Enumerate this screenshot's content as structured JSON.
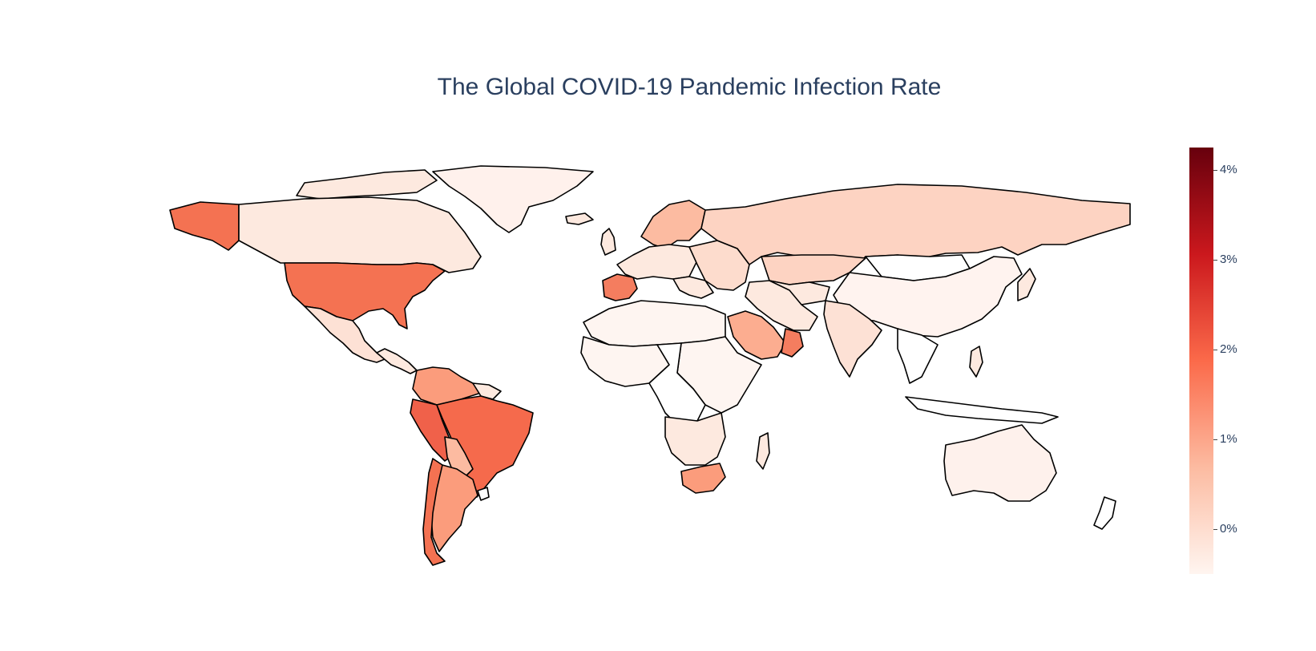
{
  "title": "The Global COVID-19 Pandemic Infection Rate",
  "colorbar": {
    "ticks": [
      "4%",
      "3%",
      "2%",
      "1%",
      "0%"
    ],
    "colorscale": "Reds",
    "colors": [
      "#fff5f0",
      "#fcbba1",
      "#fb6a4a",
      "#cb181d",
      "#67000d"
    ]
  },
  "map_data": {
    "projection": "equirectangular",
    "border_color": "#000000",
    "metric": "infection rate (%)",
    "highlighted_regions": [
      {
        "region": "United States",
        "approx_rate": 2.0
      },
      {
        "region": "Brazil",
        "approx_rate": 2.0
      },
      {
        "region": "Peru",
        "approx_rate": 2.0
      },
      {
        "region": "Chile",
        "approx_rate": 1.9
      },
      {
        "region": "Argentina",
        "approx_rate": 1.3
      },
      {
        "region": "Colombia",
        "approx_rate": 1.3
      },
      {
        "region": "Spain",
        "approx_rate": 1.5
      },
      {
        "region": "South Africa",
        "approx_rate": 1.2
      },
      {
        "region": "Oman",
        "approx_rate": 1.6
      },
      {
        "region": "Saudi Arabia",
        "approx_rate": 0.9
      },
      {
        "region": "Sweden",
        "approx_rate": 0.9
      },
      {
        "region": "Russia",
        "approx_rate": 0.6
      },
      {
        "region": "Kazakhstan",
        "approx_rate": 0.6
      },
      {
        "region": "Canada",
        "approx_rate": 0.3
      },
      {
        "region": "Mexico",
        "approx_rate": 0.4
      },
      {
        "region": "Australia",
        "approx_rate": 0.1
      },
      {
        "region": "China",
        "approx_rate": 0.0
      }
    ]
  }
}
